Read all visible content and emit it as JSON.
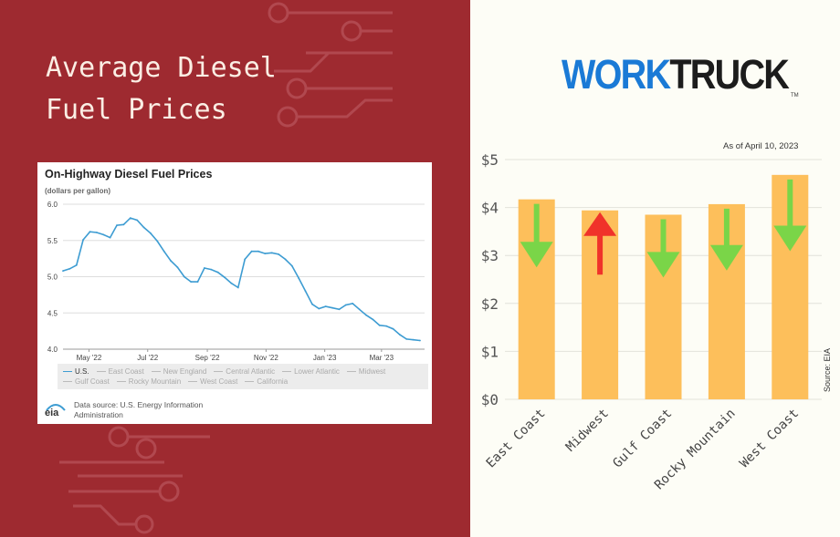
{
  "headline": {
    "line1": "Average Diesel",
    "line2": "Fuel Prices"
  },
  "colors": {
    "left_background": "#9e2a30",
    "right_background": "#fdfdf6",
    "bar": "#fdbf5b",
    "down_arrow": "#7ad548",
    "up_arrow": "#f0322a",
    "us_line": "#3d9cd2",
    "brand_blue": "#1a7ad6"
  },
  "eia_chart": {
    "title": "On-Highway Diesel Fuel Prices",
    "unit_label": "(dollars per gallon)",
    "legend": [
      {
        "label": "U.S.",
        "active": true
      },
      {
        "label": "East Coast",
        "active": false
      },
      {
        "label": "New England",
        "active": false
      },
      {
        "label": "Central Atlantic",
        "active": false
      },
      {
        "label": "Lower Atlantic",
        "active": false
      },
      {
        "label": "Midwest",
        "active": false
      },
      {
        "label": "Gulf Coast",
        "active": false
      },
      {
        "label": "Rocky Mountain",
        "active": false
      },
      {
        "label": "West Coast",
        "active": false
      },
      {
        "label": "California",
        "active": false
      }
    ],
    "logo_text": "eia",
    "source_text": "Data source: U.S. Energy Information Administration"
  },
  "brand": {
    "part1": "WORK",
    "part2": "TRUCK",
    "tm": "TM"
  },
  "bar_chart": {
    "as_of": "As of April 10, 2023",
    "source": "Source: EIA"
  },
  "chart_data": [
    {
      "type": "line",
      "title": "On-Highway Diesel Fuel Prices",
      "ylabel": "(dollars per gallon)",
      "ylim": [
        4.0,
        6.0
      ],
      "yticks": [
        "6.0",
        "5.5",
        "5.0",
        "4.5",
        "4.0"
      ],
      "xticks": [
        "May '22",
        "Jul '22",
        "Sep '22",
        "Nov '22",
        "Jan '23",
        "Mar '23"
      ],
      "grid": true,
      "legend_position": "bottom",
      "series": [
        {
          "name": "U.S.",
          "x": [
            "2022-04-04",
            "2022-04-11",
            "2022-04-18",
            "2022-04-25",
            "2022-05-02",
            "2022-05-09",
            "2022-05-16",
            "2022-05-23",
            "2022-05-30",
            "2022-06-06",
            "2022-06-13",
            "2022-06-20",
            "2022-06-27",
            "2022-07-04",
            "2022-07-11",
            "2022-07-18",
            "2022-07-25",
            "2022-08-01",
            "2022-08-08",
            "2022-08-15",
            "2022-08-22",
            "2022-08-29",
            "2022-09-05",
            "2022-09-12",
            "2022-09-19",
            "2022-09-26",
            "2022-10-03",
            "2022-10-10",
            "2022-10-17",
            "2022-10-24",
            "2022-10-31",
            "2022-11-07",
            "2022-11-14",
            "2022-11-21",
            "2022-11-28",
            "2022-12-05",
            "2022-12-12",
            "2022-12-19",
            "2022-12-26",
            "2023-01-02",
            "2023-01-09",
            "2023-01-16",
            "2023-01-23",
            "2023-01-30",
            "2023-02-06",
            "2023-02-13",
            "2023-02-20",
            "2023-02-27",
            "2023-03-06",
            "2023-03-13",
            "2023-03-20",
            "2023-03-27",
            "2023-04-03",
            "2023-04-10"
          ],
          "values": [
            5.08,
            5.11,
            5.16,
            5.51,
            5.62,
            5.61,
            5.58,
            5.54,
            5.71,
            5.72,
            5.81,
            5.78,
            5.68,
            5.6,
            5.49,
            5.35,
            5.22,
            5.13,
            5.0,
            4.93,
            4.93,
            5.12,
            5.1,
            5.06,
            4.99,
            4.91,
            4.85,
            5.24,
            5.35,
            5.35,
            5.32,
            5.33,
            5.31,
            5.24,
            5.15,
            4.98,
            4.8,
            4.62,
            4.56,
            4.59,
            4.57,
            4.55,
            4.61,
            4.63,
            4.55,
            4.47,
            4.41,
            4.33,
            4.32,
            4.28,
            4.2,
            4.14,
            4.13,
            4.12
          ]
        }
      ]
    },
    {
      "type": "bar",
      "categories": [
        "East Coast",
        "Midwest",
        "Gulf Coast",
        "Rocky Mountain",
        "West Coast"
      ],
      "values": [
        4.17,
        3.94,
        3.85,
        4.07,
        4.68
      ],
      "change_direction": [
        "down",
        "up",
        "down",
        "down",
        "down"
      ],
      "ylim": [
        0,
        5
      ],
      "yticks": [
        "$0",
        "$1",
        "$2",
        "$3",
        "$4",
        "$5"
      ],
      "grid": true
    }
  ]
}
